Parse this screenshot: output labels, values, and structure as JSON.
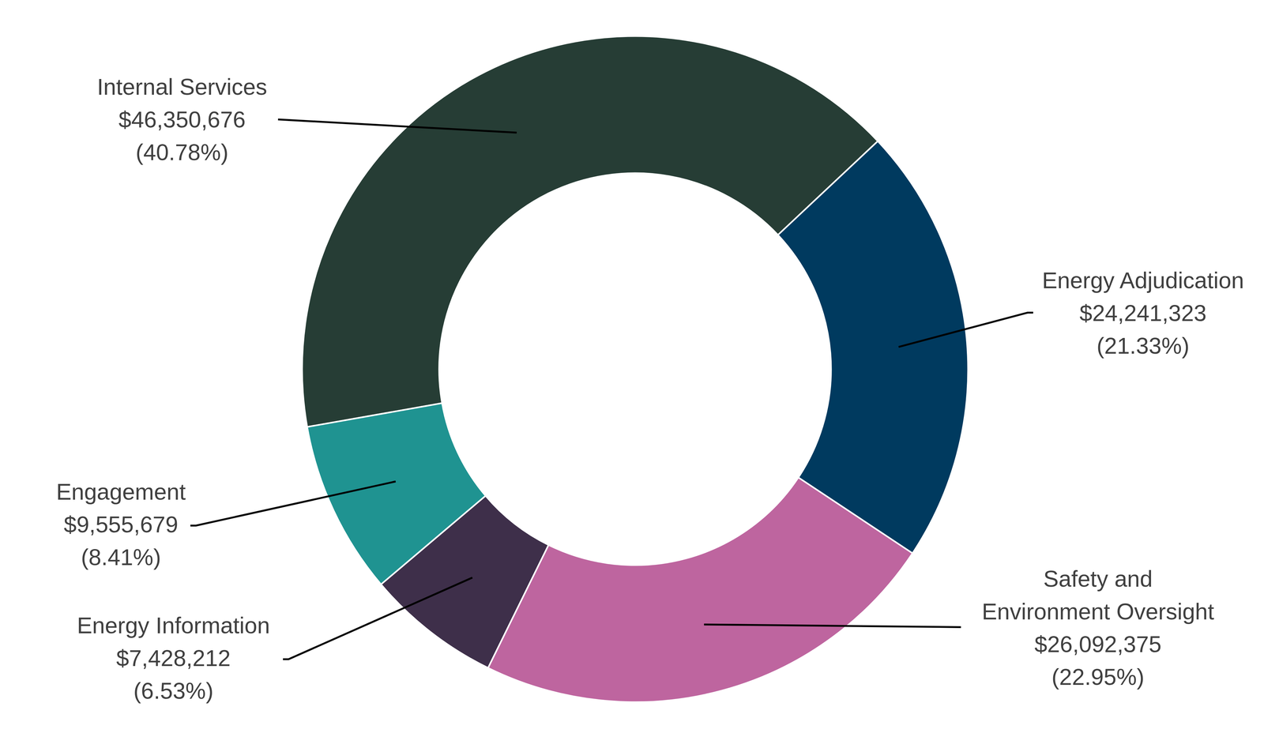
{
  "chart_data": {
    "type": "donut",
    "categories": [
      "Internal Services",
      "Energy Adjudication",
      "Safety and Environment Oversight",
      "Energy Information",
      "Engagement"
    ],
    "values": [
      46350676,
      24241323,
      26092375,
      7428212,
      9555679
    ],
    "value_labels": [
      "$46,350,676",
      "$24,241,323",
      "$26,092,375",
      "$7,428,212",
      "$9,555,679"
    ],
    "percentages": [
      40.78,
      21.33,
      22.95,
      6.53,
      8.41
    ],
    "percent_labels": [
      "(40.78%)",
      "(21.33%)",
      "(22.95%)",
      "(6.53%)",
      "(8.41%)"
    ],
    "colors": [
      "#263d35",
      "#003a5f",
      "#be659f",
      "#3e2f4a",
      "#1f9391"
    ],
    "data_labels": true
  }
}
